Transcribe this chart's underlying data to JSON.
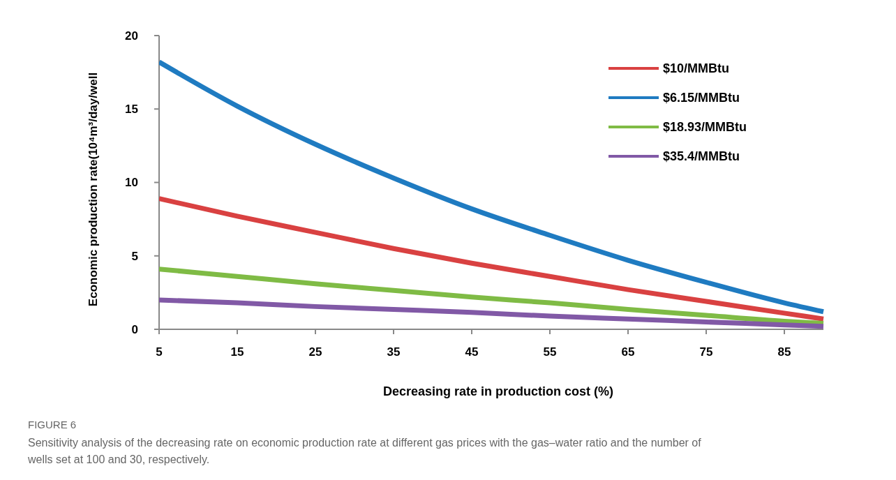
{
  "chart_data": {
    "type": "line",
    "xlabel": "Decreasing rate in production cost (%)",
    "ylabel": "Economic production rate(10⁴m³/day/well",
    "x": [
      5,
      15,
      25,
      35,
      45,
      55,
      65,
      75,
      85,
      90
    ],
    "series": [
      {
        "name": "$10/MMBtu",
        "color": "#d94141",
        "values": [
          8.9,
          7.7,
          6.6,
          5.5,
          4.5,
          3.6,
          2.7,
          1.9,
          1.1,
          0.7
        ]
      },
      {
        "name": "$6.15/MMBtu",
        "color": "#1f7bc1",
        "values": [
          18.2,
          15.2,
          12.6,
          10.3,
          8.2,
          6.4,
          4.7,
          3.2,
          1.8,
          1.2
        ]
      },
      {
        "name": "$18.93/MMBtu",
        "color": "#7fbb45",
        "values": [
          4.1,
          3.6,
          3.1,
          2.65,
          2.2,
          1.8,
          1.35,
          0.95,
          0.55,
          0.4
        ]
      },
      {
        "name": "$35.4/MMBtu",
        "color": "#8159a6",
        "values": [
          2.0,
          1.8,
          1.55,
          1.35,
          1.15,
          0.9,
          0.7,
          0.5,
          0.3,
          0.2
        ]
      }
    ],
    "xlim": [
      5,
      90
    ],
    "xticks": [
      5,
      15,
      25,
      35,
      45,
      55,
      65,
      75,
      85
    ],
    "ylim": [
      0,
      20
    ],
    "yticks": [
      0,
      5,
      10,
      15,
      20
    ],
    "grid": false,
    "legend": "top right",
    "marker": "none",
    "line_style": "solid",
    "annotations": [
      "FIGURE 6",
      "Sensitivity analysis of the decreasing rate on economic production rate at different gas prices with the gas–water ratio and the number of wells set at 100 and 30, respectively."
    ]
  }
}
